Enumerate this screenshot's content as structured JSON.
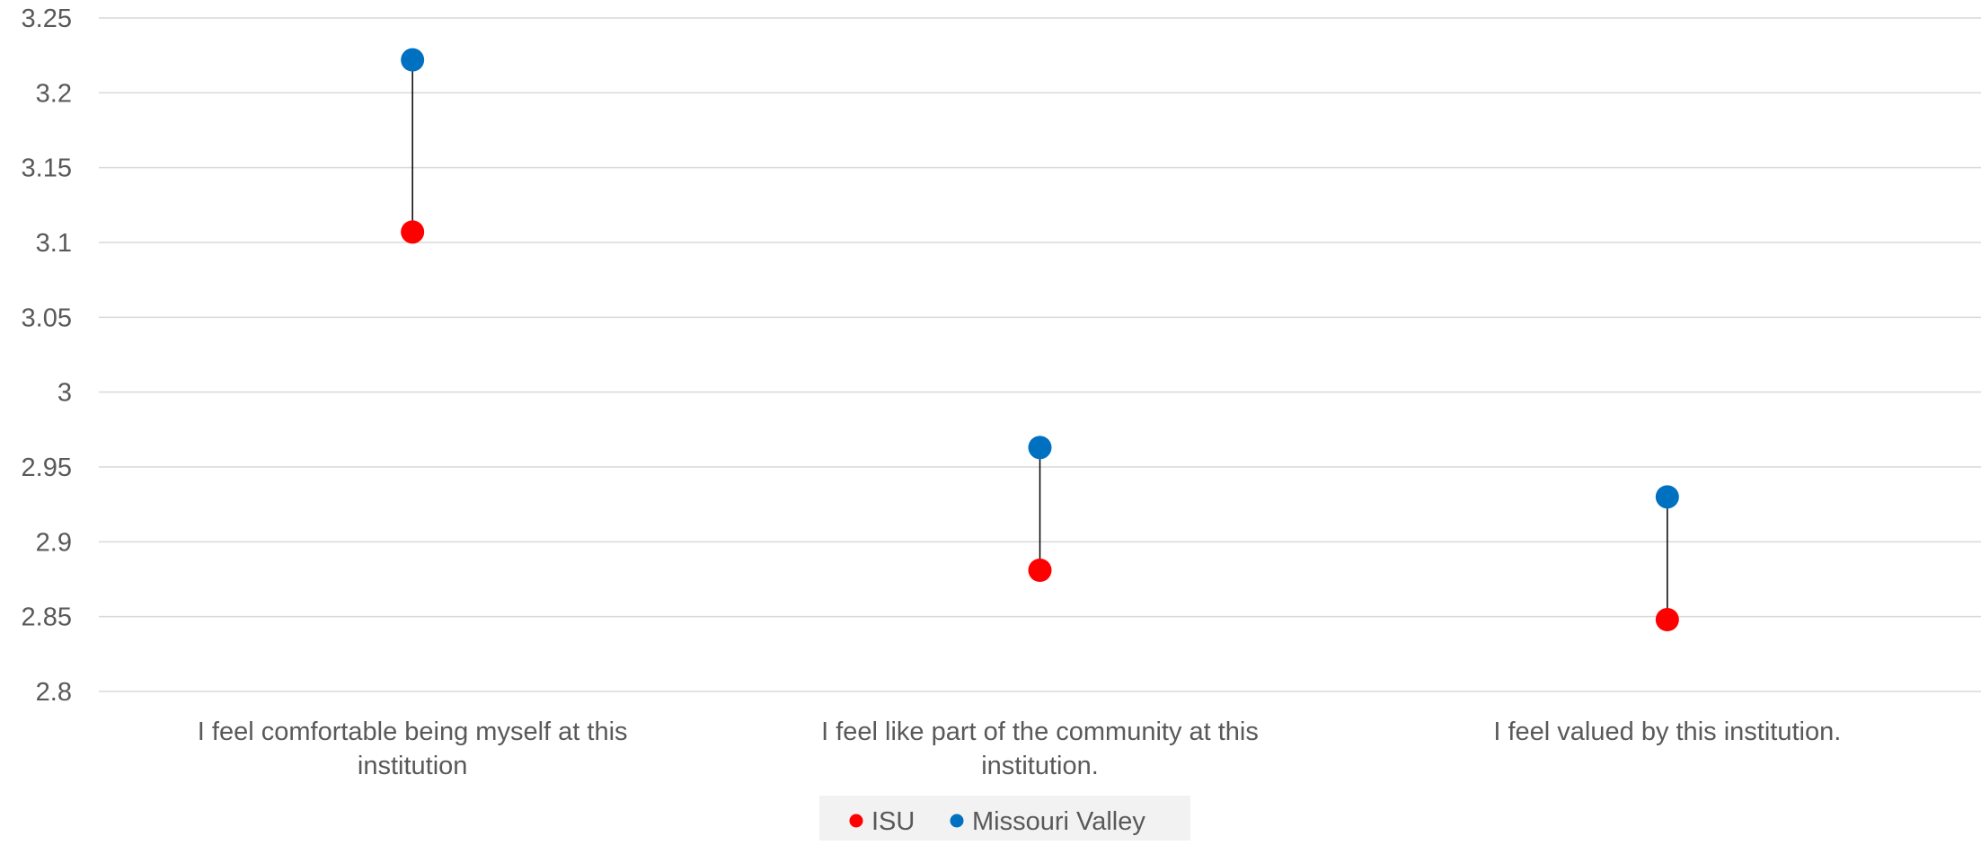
{
  "chart_data": {
    "type": "scatter",
    "subtype": "dumbbell",
    "title": "",
    "xlabel": "",
    "ylabel": "",
    "ylim": [
      2.8,
      3.25
    ],
    "yticks": [
      "3.25",
      "3.2",
      "3.15",
      "3.1",
      "3.05",
      "3",
      "2.95",
      "2.9",
      "2.85",
      "2.8"
    ],
    "grid": "horizontal",
    "legend_position": "bottom",
    "categories": [
      [
        "I feel comfortable being myself at this",
        "institution"
      ],
      [
        "I feel like part of the community at this",
        "institution."
      ],
      [
        "I feel valued by this institution."
      ]
    ],
    "series": [
      {
        "name": "ISU",
        "color": "#ff0000",
        "values": [
          3.107,
          2.881,
          2.848
        ]
      },
      {
        "name": "Missouri Valley",
        "color": "#0070c0",
        "values": [
          3.222,
          2.963,
          2.93
        ]
      }
    ],
    "connector_color": "#000000",
    "gridline_color": "#d9d9d9",
    "legend_background": "#f2f2f2"
  }
}
